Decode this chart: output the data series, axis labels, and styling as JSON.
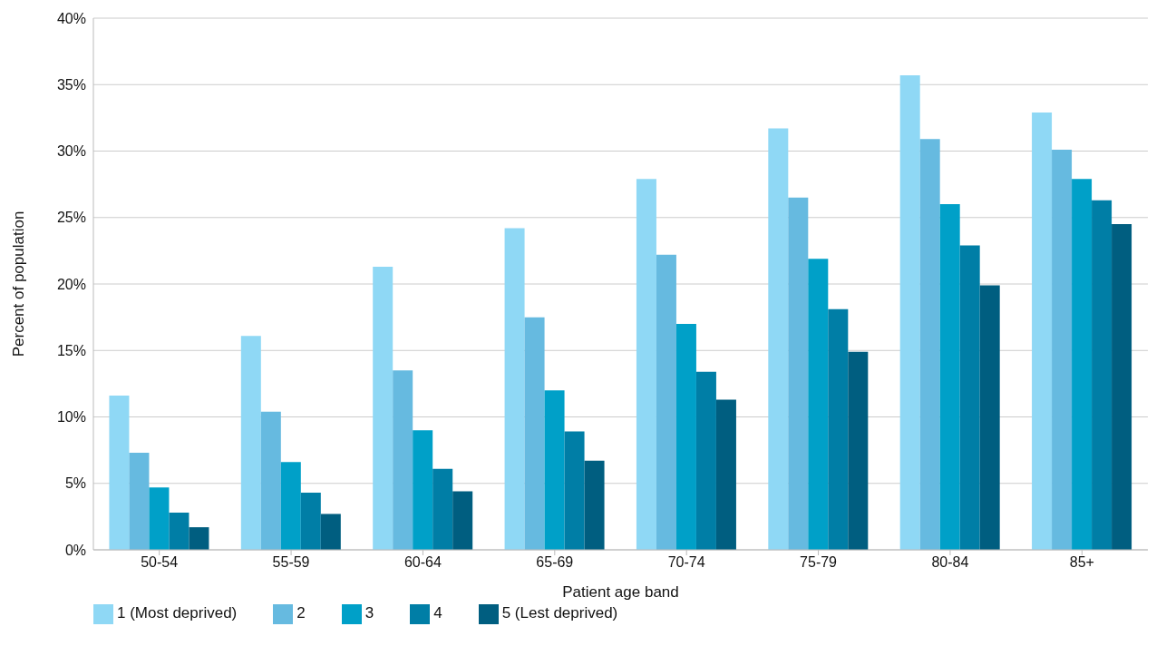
{
  "chart_data": {
    "type": "bar",
    "xlabel": "Patient age band",
    "ylabel": "Percent of population",
    "categories": [
      "50-54",
      "55-59",
      "60-64",
      "65-69",
      "70-74",
      "75-79",
      "80-84",
      "85+"
    ],
    "series": [
      {
        "name": "1 (Most deprived)",
        "color": "#8fd8f5",
        "values": [
          11.6,
          16.1,
          21.3,
          24.2,
          27.9,
          31.7,
          35.7,
          32.9
        ]
      },
      {
        "name": "2",
        "color": "#66bae0",
        "values": [
          7.3,
          10.4,
          13.5,
          17.5,
          22.2,
          26.5,
          30.9,
          30.1
        ]
      },
      {
        "name": "3",
        "color": "#00a0c8",
        "values": [
          4.7,
          6.6,
          9.0,
          12.0,
          17.0,
          21.9,
          26.0,
          27.9
        ]
      },
      {
        "name": "4",
        "color": "#007ea6",
        "values": [
          2.8,
          4.3,
          6.1,
          8.9,
          13.4,
          18.1,
          22.9,
          26.3
        ]
      },
      {
        "name": "5 (Lest deprived)",
        "color": "#005e80",
        "values": [
          1.7,
          2.7,
          4.4,
          6.7,
          11.3,
          14.9,
          19.9,
          24.5
        ]
      }
    ],
    "ylim": [
      0,
      40
    ],
    "yticks": [
      {
        "value": 0,
        "label": "0%"
      },
      {
        "value": 5,
        "label": "5%"
      },
      {
        "value": 10,
        "label": "10%"
      },
      {
        "value": 15,
        "label": "15%"
      },
      {
        "value": 20,
        "label": "20%"
      },
      {
        "value": 25,
        "label": "25%"
      },
      {
        "value": 30,
        "label": "30%"
      },
      {
        "value": 35,
        "label": "35%"
      },
      {
        "value": 40,
        "label": "40%"
      }
    ],
    "grid": "y",
    "legend": "bottom left"
  }
}
